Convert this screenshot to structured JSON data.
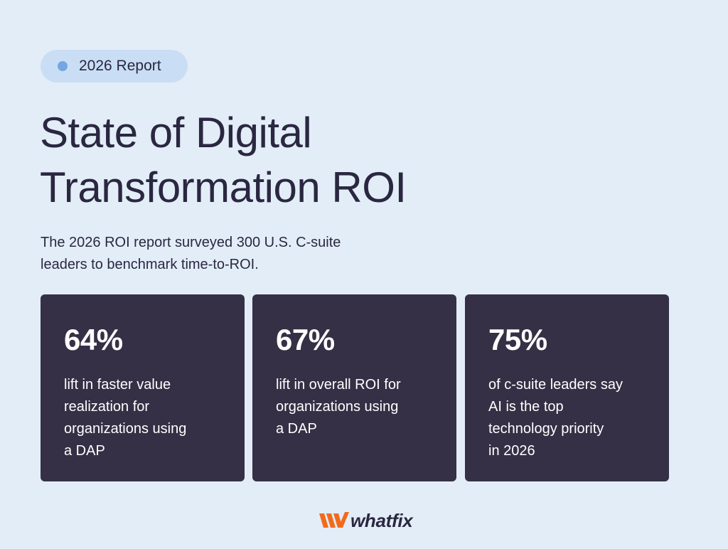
{
  "badge": {
    "label": "2026 Report",
    "dot_color": "#74a6e0"
  },
  "title": {
    "line1": "State of Digital",
    "line2": "Transformation ROI"
  },
  "subtitle": {
    "line1": "The 2026 ROI report surveyed 300 U.S. C-suite",
    "line2": "leaders to benchmark time-to-ROI."
  },
  "cards": [
    {
      "stat": "64%",
      "lines": [
        "lift in faster value",
        "realization for",
        "organizations using",
        "a DAP"
      ]
    },
    {
      "stat": "67%",
      "lines": [
        "lift in overall ROI for",
        "organizations using",
        "a DAP"
      ]
    },
    {
      "stat": "75%",
      "lines": [
        "of c-suite leaders say",
        "AI is the top",
        "technology priority",
        "in 2026"
      ]
    }
  ],
  "logo": {
    "text": "whatfix",
    "icon": "whatfix-logo-mark-icon",
    "accent_color": "#f26b1d"
  },
  "colors": {
    "background": "#e3edf8",
    "card": "#353045",
    "text": "#2a2740"
  }
}
